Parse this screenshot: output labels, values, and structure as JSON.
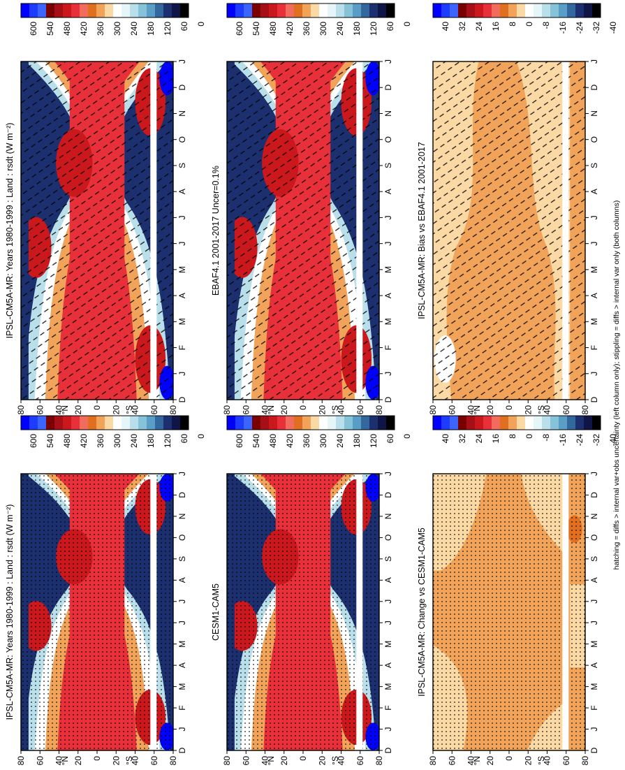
{
  "figure": {
    "footnote": "hatching = diffs > internal var+obs uncertainty (left column only); stippling = diffs > internal var only (both columns)"
  },
  "colorbars": {
    "absolute": {
      "labels": [
        "600",
        "540",
        "480",
        "420",
        "360",
        "300",
        "240",
        "180",
        "120",
        "60",
        "0"
      ],
      "colors": [
        "#0000ff",
        "#1e3cff",
        "#3c64ff",
        "#7a0000",
        "#a50f15",
        "#cb181d",
        "#e8303a",
        "#f26c5d",
        "#e0701f",
        "#f2a35a",
        "#fbd9a5",
        "#ffffff",
        "#e6f5f8",
        "#b9e0ea",
        "#87c3d8",
        "#5a9ec8",
        "#33689e",
        "#1c2f6e",
        "#0f1546",
        "#000000"
      ]
    },
    "difference": {
      "labels": [
        "40",
        "32",
        "24",
        "16",
        "8",
        "0",
        "-8",
        "-16",
        "-24",
        "-32",
        "-40"
      ],
      "colors": [
        "#0000ff",
        "#1e3cff",
        "#3c64ff",
        "#7a0000",
        "#a50f15",
        "#cb181d",
        "#e8303a",
        "#f26c5d",
        "#e0701f",
        "#f2a35a",
        "#fbd9a5",
        "#ffffff",
        "#e6f5f8",
        "#b9e0ea",
        "#87c3d8",
        "#5a9ec8",
        "#33689e",
        "#1c2f6e",
        "#0f1546",
        "#000000"
      ]
    }
  },
  "chart_data": [
    {
      "type": "heatmap",
      "title": "IPSL-CM5A-MR: Years 1980-1999 : Land : rsdt (W m⁻²)",
      "x_ticks": [
        "D",
        "J",
        "F",
        "M",
        "A",
        "M",
        "J",
        "J",
        "A",
        "S",
        "O",
        "N",
        "D",
        "J"
      ],
      "y_ticks": [
        "80",
        "60",
        "40",
        "20",
        "0",
        "20",
        "40",
        "60",
        "80"
      ],
      "y_hemisphere_labels": [
        "N",
        "S"
      ],
      "masked_latitude": "60S",
      "hatching": "hatched",
      "colorbar": "absolute"
    },
    {
      "type": "heatmap",
      "title": "IPSL-CM5A-MR: Years 1980-1999 : Land : rsdt (W m⁻²)",
      "x_ticks": [
        "D",
        "J",
        "F",
        "M",
        "A",
        "M",
        "J",
        "J",
        "A",
        "S",
        "O",
        "N",
        "D",
        "J"
      ],
      "y_ticks": [
        "80",
        "60",
        "40",
        "20",
        "0",
        "20",
        "40",
        "60",
        "80"
      ],
      "y_hemisphere_labels": [
        "N",
        "S"
      ],
      "masked_latitude": "60S",
      "hatching": "stippled",
      "colorbar": "absolute"
    },
    {
      "type": "heatmap",
      "title": "EBAF4.1 2001-2017 Uncer=0.1%",
      "x_ticks": [
        "D",
        "J",
        "F",
        "M",
        "A",
        "M",
        "J",
        "J",
        "A",
        "S",
        "O",
        "N",
        "D",
        "J"
      ],
      "y_ticks": [
        "80",
        "60",
        "40",
        "20",
        "0",
        "20",
        "40",
        "60",
        "80"
      ],
      "y_hemisphere_labels": [
        "N",
        "S"
      ],
      "masked_latitude": "60S",
      "hatching": "hatched",
      "colorbar": "absolute"
    },
    {
      "type": "heatmap",
      "title": "CESM1-CAM5",
      "x_ticks": [
        "D",
        "J",
        "F",
        "M",
        "A",
        "M",
        "J",
        "J",
        "A",
        "S",
        "O",
        "N",
        "D",
        "J"
      ],
      "y_ticks": [
        "80",
        "60",
        "40",
        "20",
        "0",
        "20",
        "40",
        "60",
        "80"
      ],
      "y_hemisphere_labels": [
        "N",
        "S"
      ],
      "masked_latitude": "60S",
      "hatching": "stippled",
      "colorbar": "absolute"
    },
    {
      "type": "heatmap",
      "title": "IPSL-CM5A-MR: Bias vs EBAF4.1 2001-2017",
      "x_ticks": [
        "D",
        "J",
        "F",
        "M",
        "A",
        "M",
        "J",
        "J",
        "A",
        "S",
        "O",
        "N",
        "D",
        "J"
      ],
      "y_ticks": [
        "80",
        "60",
        "40",
        "20",
        "0",
        "20",
        "40",
        "60",
        "80"
      ],
      "y_hemisphere_labels": [
        "N",
        "S"
      ],
      "masked_latitude": "60S",
      "hatching": "hatched",
      "colorbar": "difference"
    },
    {
      "type": "heatmap",
      "title": "IPSL-CM5A-MR: Change vs CESM1-CAM5",
      "x_ticks": [
        "D",
        "J",
        "F",
        "M",
        "A",
        "M",
        "J",
        "J",
        "A",
        "S",
        "O",
        "N",
        "D",
        "J"
      ],
      "y_ticks": [
        "80",
        "60",
        "40",
        "20",
        "0",
        "20",
        "40",
        "60",
        "80"
      ],
      "y_hemisphere_labels": [
        "N",
        "S"
      ],
      "masked_latitude": "60S",
      "hatching": "stippled",
      "colorbar": "difference"
    }
  ]
}
